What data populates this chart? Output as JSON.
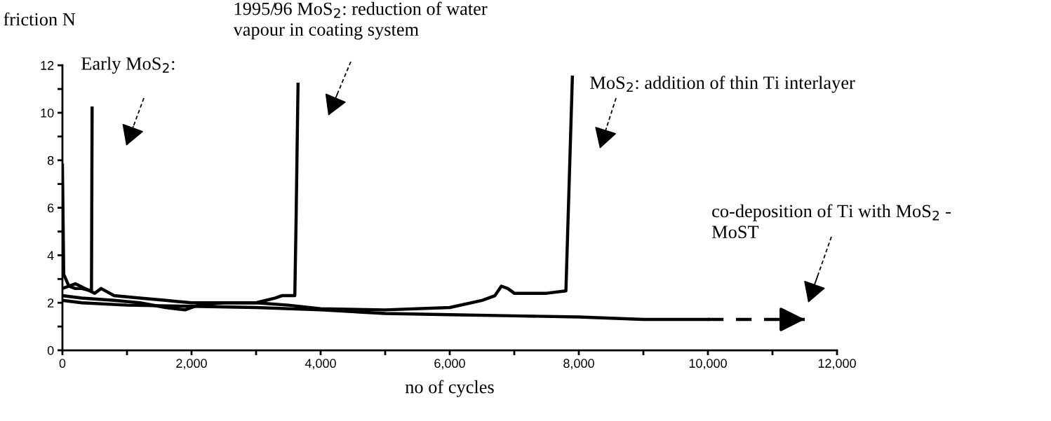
{
  "chart_data": {
    "type": "line",
    "xlabel": "no of cycles",
    "ylabel": "friction N",
    "xlim": [
      0,
      12000
    ],
    "ylim": [
      0,
      12
    ],
    "xticks": [
      {
        "value": 0,
        "label": "0"
      },
      {
        "value": 1000,
        "label": null
      },
      {
        "value": 2000,
        "label": "2,000"
      },
      {
        "value": 3000,
        "label": null
      },
      {
        "value": 4000,
        "label": "4,000"
      },
      {
        "value": 5000,
        "label": null
      },
      {
        "value": 6000,
        "label": "6,000"
      },
      {
        "value": 7000,
        "label": null
      },
      {
        "value": 8000,
        "label": "8,000"
      },
      {
        "value": 9000,
        "label": null
      },
      {
        "value": 10000,
        "label": "10,000"
      },
      {
        "value": 11000,
        "label": null
      },
      {
        "value": 12000,
        "label": "12,000"
      }
    ],
    "yticks": [
      0,
      {
        "value": 1,
        "label": null
      },
      2,
      {
        "value": 3,
        "label": null
      },
      4,
      {
        "value": 5,
        "label": null
      },
      6,
      {
        "value": 7,
        "label": null
      },
      8,
      {
        "value": 9,
        "label": null
      },
      10,
      {
        "value": 11,
        "label": null
      },
      12
    ],
    "grid": false,
    "legend": false,
    "line_style": "solid",
    "series": [
      {
        "color": "#000000",
        "x": [
          0,
          20,
          100,
          200,
          300,
          450,
          460
        ],
        "values": [
          7.8,
          3.2,
          2.7,
          2.6,
          2.6,
          2.5,
          10.2
        ]
      },
      {
        "color": "#000000",
        "x": [
          0,
          200,
          500,
          600,
          800,
          1200,
          1600,
          2000,
          2500,
          3000,
          3300,
          3400,
          3600,
          3620,
          3650
        ],
        "values": [
          2.6,
          2.8,
          2.4,
          2.6,
          2.3,
          2.2,
          2.1,
          2.0,
          2.0,
          2.0,
          2.2,
          2.3,
          2.3,
          5.5,
          11.2
        ]
      },
      {
        "color": "#000000",
        "x": [
          0,
          300,
          800,
          1200,
          1600,
          1900,
          2100,
          2500,
          3000,
          3500,
          4000,
          5000,
          6000,
          6500,
          6700,
          6800,
          6900,
          7000,
          7500,
          7800,
          7850,
          7900
        ],
        "values": [
          2.3,
          2.2,
          2.1,
          2.0,
          1.8,
          1.7,
          1.9,
          2.0,
          2.0,
          1.9,
          1.75,
          1.7,
          1.8,
          2.1,
          2.3,
          2.7,
          2.6,
          2.4,
          2.4,
          2.5,
          7.0,
          11.5
        ]
      },
      {
        "color": "#000000",
        "x": [
          0,
          300,
          1000,
          2000,
          3000,
          4000,
          5000,
          6000,
          7000,
          8000,
          9000,
          10000
        ],
        "values": [
          2.1,
          2.0,
          1.9,
          1.85,
          1.8,
          1.7,
          1.55,
          1.5,
          1.45,
          1.4,
          1.3,
          1.3
        ]
      },
      {
        "color": "#000000",
        "x": [
          10000,
          11500
        ],
        "values": [
          1.3,
          1.3
        ],
        "line_style": "dashed"
      }
    ],
    "annotations": [
      "Early MoS$_{2}$:",
      "1995/96 MoS$_{2}$: reduction of water\nvapour in coating system",
      "MoS$_{2}$: addition of thin Ti interlayer",
      "co-deposition of Ti with MoS$_{2}$ -\nMoST"
    ]
  }
}
